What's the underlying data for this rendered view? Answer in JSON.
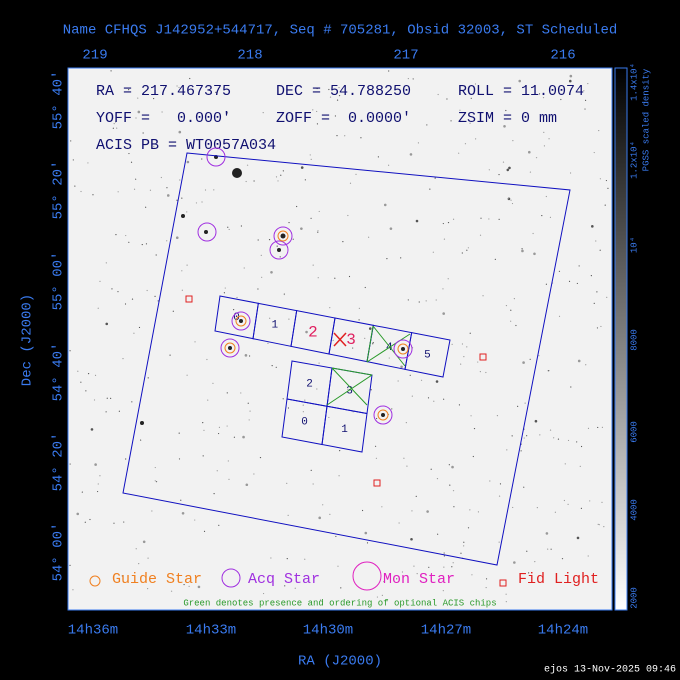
{
  "title": "Name CFHQS J142952+544717, Seq # 705281, Obsid 32003, ST Scheduled",
  "info": [
    "RA = 217.467375",
    "DEC = 54.788250",
    "ROLL = 11.0074",
    "YOFF =   0.000'",
    "ZOFF =  0.0000'",
    "ZSIM = 0 mm",
    "ACIS PB = WT0057A034"
  ],
  "top_axis": [
    "219",
    "218",
    "217",
    "216"
  ],
  "bottom_axis": [
    "14h36m",
    "14h33m",
    "14h30m",
    "14h27m",
    "14h24m"
  ],
  "left_axis": [
    "55° 40'",
    "55° 20'",
    "55° 00'",
    "54° 40'",
    "54° 20'",
    "54° 00'"
  ],
  "x_label": "RA (J2000)",
  "y_label": "Dec (J2000)",
  "colorbar": {
    "label": "PGSS scaled density",
    "ticks": [
      "2000",
      "4000",
      "6000",
      "8000",
      "10⁴",
      "1.2x10⁴",
      "1.4x10⁴"
    ]
  },
  "acis_s_chips": [
    "0",
    "1",
    "2",
    "3",
    "4",
    "5"
  ],
  "acis_i_chips": [
    "2",
    "3",
    "0",
    "1"
  ],
  "legend": [
    "Guide Star",
    "Acq Star",
    "Mon Star",
    "Fid Light"
  ],
  "note": "Green denotes presence and ordering of optional ACIS chips",
  "footer": "ejos 13-Nov-2025 09:46"
}
